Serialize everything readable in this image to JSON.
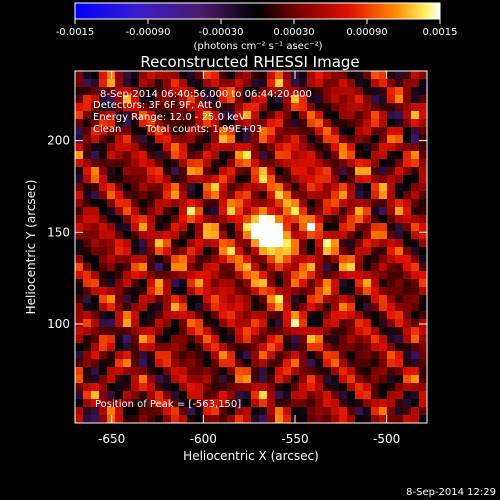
{
  "chart_data": {
    "type": "heatmap",
    "title": "Reconstructed RHESSI Image",
    "xlabel": "Heliocentric X (arcsec)",
    "ylabel": "Heliocentric Y (arcsec)",
    "xlim": [
      -670,
      -478
    ],
    "ylim": [
      46,
      238
    ],
    "xticks": [
      -650,
      -600,
      -550,
      -500
    ],
    "yticks": [
      100,
      150,
      200
    ],
    "colorbar": {
      "range": [
        -0.0015,
        0.0015
      ],
      "ticks": [
        "-0.0015",
        "-0.00090",
        "-0.00030",
        "0.00030",
        "0.00090",
        "0.0015"
      ],
      "unit_label": "(photons cm⁻² s⁻¹ asec⁻²)",
      "colormap": [
        "#0000ff",
        "#5a1ea0",
        "#000000",
        "#6a0000",
        "#e01000",
        "#ff9000",
        "#ffffff"
      ]
    },
    "peak": {
      "x": -563,
      "y": 150,
      "value": 0.0015
    },
    "annotations": [
      "8-Sep-2014 06:40:56.000 to 06:44:20.000",
      "Detectors: 3F 6F 9F, Att 0",
      "Energy Range: 12.0 - 25.0 keV",
      "Clean",
      "Total counts: 1.99E+03"
    ],
    "peak_label": "Position of Peak = [-563,150]",
    "timestamp": "8-Sep-2014 12:29"
  }
}
